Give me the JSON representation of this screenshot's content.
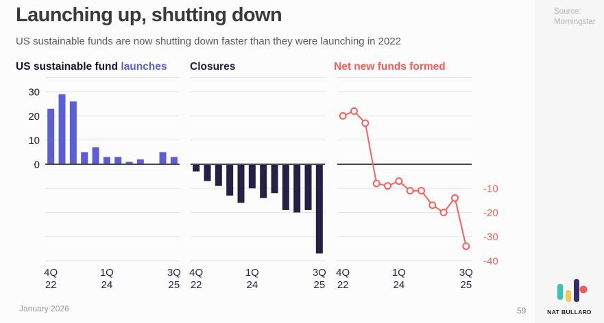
{
  "header": {
    "title": "Launching up, shutting down",
    "subtitle": "US sustainable funds are now shutting down faster than they were launching in 2022"
  },
  "panels": {
    "launches_title_prefix": "US sustainable fund ",
    "launches_title_accent": "launches",
    "closures_title": "Closures",
    "net_title": "Net new funds formed"
  },
  "source": {
    "line1": "Source:",
    "line2": "Morningstar"
  },
  "footer": {
    "date": "January 2026",
    "page": "59",
    "brand": "NAT BULLARD"
  },
  "colors": {
    "launches_bar": "#5a5fd9",
    "closures_bar": "#262044",
    "net_line": "#f9605c",
    "grid": "#e4e4e4",
    "zero_line": "#474747",
    "x_tick": "#2a2447",
    "y_tick_left": "#1a1a1a",
    "background": "#fcfcfc"
  },
  "chart_data": [
    {
      "type": "bar",
      "name": "launches",
      "title": "US sustainable fund launches",
      "categories": [
        "4Q22",
        "1Q23",
        "2Q23",
        "3Q23",
        "4Q23",
        "1Q24",
        "2Q24",
        "3Q24",
        "4Q24",
        "1Q25",
        "2Q25",
        "3Q25"
      ],
      "values": [
        23,
        29,
        26,
        5,
        7,
        3,
        3,
        1,
        2,
        0,
        5,
        3
      ],
      "color": "#5a5fd9",
      "ylim": [
        -40,
        36
      ],
      "gridlines": [
        30,
        20,
        10,
        -10,
        -20,
        -30,
        -40
      ],
      "y_ticks_left": [
        30,
        20,
        10,
        0
      ],
      "x_ticks": [
        {
          "index": 0,
          "lines": [
            "4Q",
            "22"
          ]
        },
        {
          "index": 5,
          "lines": [
            "1Q",
            "24"
          ]
        },
        {
          "index": 11,
          "lines": [
            "3Q",
            "25"
          ]
        }
      ]
    },
    {
      "type": "bar",
      "name": "closures",
      "title": "Closures",
      "categories": [
        "4Q22",
        "1Q23",
        "2Q23",
        "3Q23",
        "4Q23",
        "1Q24",
        "2Q24",
        "3Q24",
        "4Q24",
        "1Q25",
        "2Q25",
        "3Q25"
      ],
      "values": [
        -3,
        -7,
        -9,
        -13,
        -16,
        -10,
        -14,
        -12,
        -19,
        -20,
        -19,
        -37
      ],
      "color": "#262044",
      "ylim": [
        -40,
        36
      ],
      "gridlines": [
        30,
        20,
        10,
        -10,
        -20,
        -30,
        -40
      ],
      "x_ticks": [
        {
          "index": 0,
          "lines": [
            "4Q",
            "22"
          ]
        },
        {
          "index": 5,
          "lines": [
            "1Q",
            "24"
          ]
        },
        {
          "index": 11,
          "lines": [
            "3Q",
            "25"
          ]
        }
      ]
    },
    {
      "type": "line",
      "name": "net",
      "title": "Net new funds formed",
      "categories": [
        "4Q22",
        "1Q23",
        "2Q23",
        "3Q23",
        "4Q23",
        "1Q24",
        "2Q24",
        "3Q24",
        "4Q24",
        "1Q25",
        "2Q25",
        "3Q25"
      ],
      "values": [
        20,
        22,
        17,
        -8,
        -9,
        -7,
        -11,
        -11,
        -17,
        -20,
        -14,
        -34
      ],
      "color": "#f9605c",
      "ylim": [
        -40,
        36
      ],
      "gridlines": [
        30,
        20,
        10,
        -10,
        -20,
        -30,
        -40
      ],
      "y_ticks_right": [
        -10,
        -20,
        -30,
        -40
      ],
      "x_ticks": [
        {
          "index": 0,
          "lines": [
            "4Q",
            "22"
          ]
        },
        {
          "index": 5,
          "lines": [
            "1Q",
            "24"
          ]
        },
        {
          "index": 11,
          "lines": [
            "3Q",
            "25"
          ]
        }
      ]
    }
  ]
}
